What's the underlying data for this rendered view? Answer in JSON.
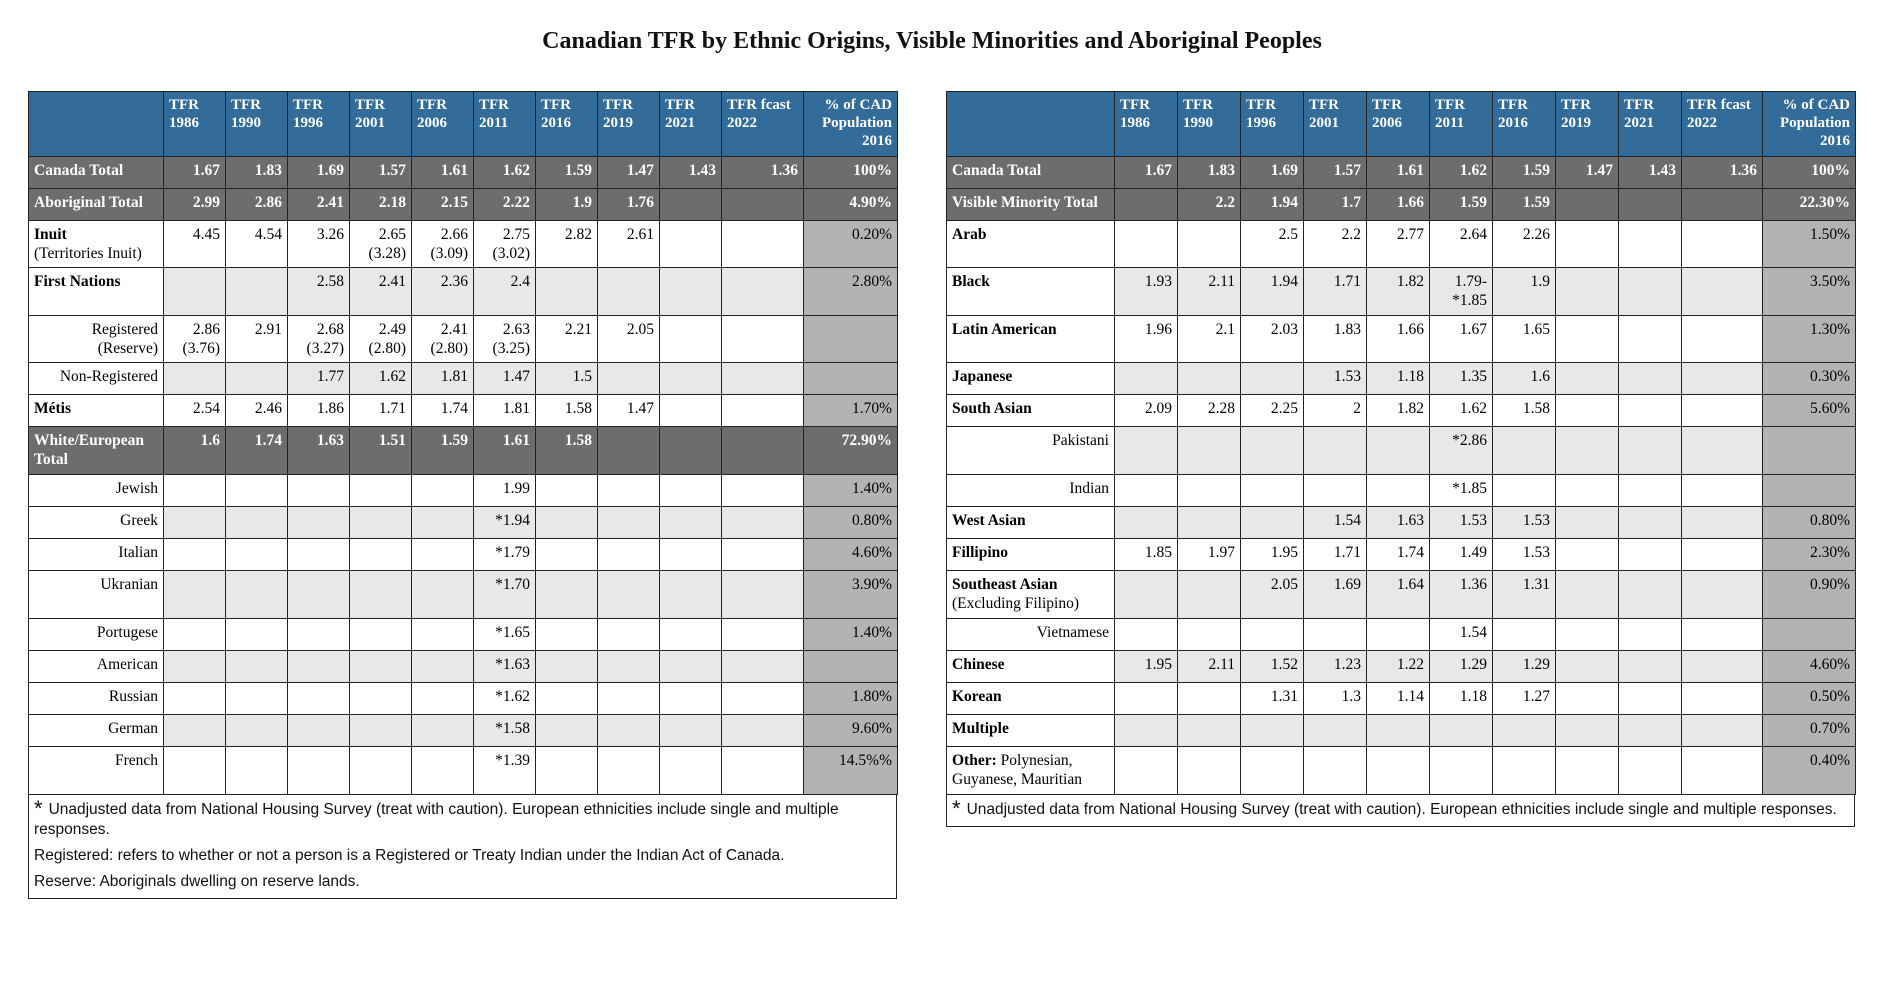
{
  "title": "Canadian TFR by Ethnic Origins, Visible Minorities and Aboriginal Peoples",
  "left": {
    "columns": [
      "TFR 1986",
      "TFR 1990",
      "TFR 1996",
      "TFR 2001",
      "TFR 2006",
      "TFR 2011",
      "TFR 2016",
      "TFR 2019",
      "TFR 2021",
      "TFR fcast 2022",
      "% of CAD Population 2016"
    ],
    "rows": [
      {
        "label": "Canada Total",
        "shaded": true,
        "values": [
          1.67,
          1.83,
          1.69,
          1.57,
          1.61,
          1.62,
          1.59,
          1.47,
          1.43,
          1.36,
          "100%"
        ]
      },
      {
        "label": "Aboriginal Total",
        "shaded": true,
        "values": [
          2.99,
          2.86,
          2.41,
          2.18,
          2.15,
          2.22,
          1.9,
          1.76,
          null,
          null,
          "4.90%"
        ]
      },
      {
        "label": "Inuit",
        "note": "(Territories Inuit)",
        "values": [
          4.45,
          4.54,
          3.26,
          "2.65\n(3.28)",
          "2.66\n(3.09)",
          "2.75\n(3.02)",
          2.82,
          2.61,
          null,
          null,
          "0.20%"
        ]
      },
      {
        "label": "First Nations",
        "values": [
          null,
          null,
          2.58,
          2.41,
          2.36,
          2.4,
          null,
          null,
          null,
          null,
          "2.80%"
        ]
      },
      {
        "label": "Registered",
        "note": "(Reserve)",
        "sub": true,
        "values": [
          "2.86\n(3.76)",
          2.91,
          "2.68\n(3.27)",
          "2.49\n(2.80)",
          "2.41\n(2.80)",
          "2.63\n(3.25)",
          2.21,
          2.05,
          null,
          null,
          null
        ]
      },
      {
        "label": "Non-Registered",
        "sub": true,
        "values": [
          null,
          null,
          1.77,
          1.62,
          1.81,
          1.47,
          1.5,
          null,
          null,
          null,
          null
        ]
      },
      {
        "label": "Métis",
        "values": [
          2.54,
          2.46,
          1.86,
          1.71,
          1.74,
          1.81,
          1.58,
          1.47,
          null,
          null,
          "1.70%"
        ]
      },
      {
        "label": "White/European Total",
        "shaded": true,
        "values": [
          1.6,
          1.74,
          1.63,
          1.51,
          1.59,
          1.61,
          1.58,
          null,
          null,
          null,
          "72.90%"
        ]
      },
      {
        "label": "Jewish",
        "sub": true,
        "values": [
          null,
          null,
          null,
          null,
          null,
          1.99,
          null,
          null,
          null,
          null,
          "1.40%"
        ]
      },
      {
        "label": "Greek",
        "sub": true,
        "values": [
          null,
          null,
          null,
          null,
          null,
          "*1.94",
          null,
          null,
          null,
          null,
          "0.80%"
        ]
      },
      {
        "label": "Italian",
        "sub": true,
        "values": [
          null,
          null,
          null,
          null,
          null,
          "*1.79",
          null,
          null,
          null,
          null,
          "4.60%"
        ]
      },
      {
        "label": "Ukranian",
        "sub": true,
        "values": [
          null,
          null,
          null,
          null,
          null,
          "*1.70",
          null,
          null,
          null,
          null,
          "3.90%"
        ]
      },
      {
        "label": "Portugese",
        "sub": true,
        "values": [
          null,
          null,
          null,
          null,
          null,
          "*1.65",
          null,
          null,
          null,
          null,
          "1.40%"
        ]
      },
      {
        "label": "American",
        "sub": true,
        "values": [
          null,
          null,
          null,
          null,
          null,
          "*1.63",
          null,
          null,
          null,
          null,
          null
        ]
      },
      {
        "label": "Russian",
        "sub": true,
        "values": [
          null,
          null,
          null,
          null,
          null,
          "*1.62",
          null,
          null,
          null,
          null,
          "1.80%"
        ]
      },
      {
        "label": "German",
        "sub": true,
        "values": [
          null,
          null,
          null,
          null,
          null,
          "*1.58",
          null,
          null,
          null,
          null,
          "9.60%"
        ]
      },
      {
        "label": "French",
        "sub": true,
        "values": [
          null,
          null,
          null,
          null,
          null,
          "*1.39",
          null,
          null,
          null,
          null,
          "14.5%%"
        ]
      }
    ],
    "footnotes": [
      {
        "mark": "*",
        "text": "Unadjusted data from National Housing Survey (treat with caution). European ethnicities include single and multiple responses."
      },
      {
        "text": "Registered: refers to whether or not a person is a Registered or Treaty Indian under the Indian Act of Canada."
      },
      {
        "text": "Reserve: Aboriginals dwelling on reserve lands."
      }
    ]
  },
  "right": {
    "columns": [
      "TFR 1986",
      "TFR 1990",
      "TFR 1996",
      "TFR 2001",
      "TFR 2006",
      "TFR 2011",
      "TFR 2016",
      "TFR 2019",
      "TFR 2021",
      "TFR fcast 2022",
      "% of CAD Population 2016"
    ],
    "rows": [
      {
        "label": "Canada Total",
        "shaded": true,
        "values": [
          1.67,
          1.83,
          1.69,
          1.57,
          1.61,
          1.62,
          1.59,
          1.47,
          1.43,
          1.36,
          "100%"
        ]
      },
      {
        "label": "Visible Minority Total",
        "shaded": true,
        "values": [
          null,
          2.2,
          1.94,
          1.7,
          1.66,
          1.59,
          1.59,
          null,
          null,
          null,
          "22.30%"
        ]
      },
      {
        "label": "Arab",
        "values": [
          null,
          null,
          2.5,
          2.2,
          2.77,
          2.64,
          2.26,
          null,
          null,
          null,
          "1.50%"
        ]
      },
      {
        "label": "Black",
        "values": [
          1.93,
          2.11,
          1.94,
          1.71,
          1.82,
          "1.79-\n*1.85",
          1.9,
          null,
          null,
          null,
          "3.50%"
        ]
      },
      {
        "label": "Latin American",
        "values": [
          1.96,
          2.1,
          2.03,
          1.83,
          1.66,
          1.67,
          1.65,
          null,
          null,
          null,
          "1.30%"
        ]
      },
      {
        "label": "Japanese",
        "values": [
          null,
          null,
          null,
          1.53,
          1.18,
          1.35,
          1.6,
          null,
          null,
          null,
          "0.30%"
        ]
      },
      {
        "label": "South Asian",
        "values": [
          2.09,
          2.28,
          2.25,
          2,
          1.82,
          1.62,
          1.58,
          null,
          null,
          null,
          "5.60%"
        ]
      },
      {
        "label": "Pakistani",
        "sub": true,
        "values": [
          null,
          null,
          null,
          null,
          null,
          "*2.86",
          null,
          null,
          null,
          null,
          null
        ]
      },
      {
        "label": "Indian",
        "sub": true,
        "values": [
          null,
          null,
          null,
          null,
          null,
          "*1.85",
          null,
          null,
          null,
          null,
          null
        ]
      },
      {
        "label": "West Asian",
        "values": [
          null,
          null,
          null,
          1.54,
          1.63,
          1.53,
          1.53,
          null,
          null,
          null,
          "0.80%"
        ]
      },
      {
        "label": "Fillipino",
        "values": [
          1.85,
          1.97,
          1.95,
          1.71,
          1.74,
          1.49,
          1.53,
          null,
          null,
          null,
          "2.30%"
        ]
      },
      {
        "label": "Southeast Asian",
        "note": "(Excluding Filipino)",
        "values": [
          null,
          null,
          2.05,
          1.69,
          1.64,
          1.36,
          1.31,
          null,
          null,
          null,
          "0.90%"
        ]
      },
      {
        "label": "Vietnamese",
        "sub": true,
        "values": [
          null,
          null,
          null,
          null,
          null,
          1.54,
          null,
          null,
          null,
          null,
          null
        ]
      },
      {
        "label": "Chinese",
        "values": [
          1.95,
          2.11,
          1.52,
          1.23,
          1.22,
          1.29,
          1.29,
          null,
          null,
          null,
          "4.60%"
        ]
      },
      {
        "label": "Korean",
        "values": [
          null,
          null,
          1.31,
          1.3,
          1.14,
          1.18,
          1.27,
          null,
          null,
          null,
          "0.50%"
        ]
      },
      {
        "label": "Multiple",
        "values": [
          null,
          null,
          null,
          null,
          null,
          null,
          null,
          null,
          null,
          null,
          "0.70%"
        ]
      },
      {
        "label": "Other:",
        "note": "Polynesian, Guyanese, Mauritian",
        "values": [
          null,
          null,
          null,
          null,
          null,
          null,
          null,
          null,
          null,
          null,
          "0.40%"
        ]
      }
    ],
    "footnotes": [
      {
        "mark": "*",
        "text": "Unadjusted data from National Housing Survey (treat with caution). European ethnicities include single and multiple responses."
      }
    ]
  }
}
